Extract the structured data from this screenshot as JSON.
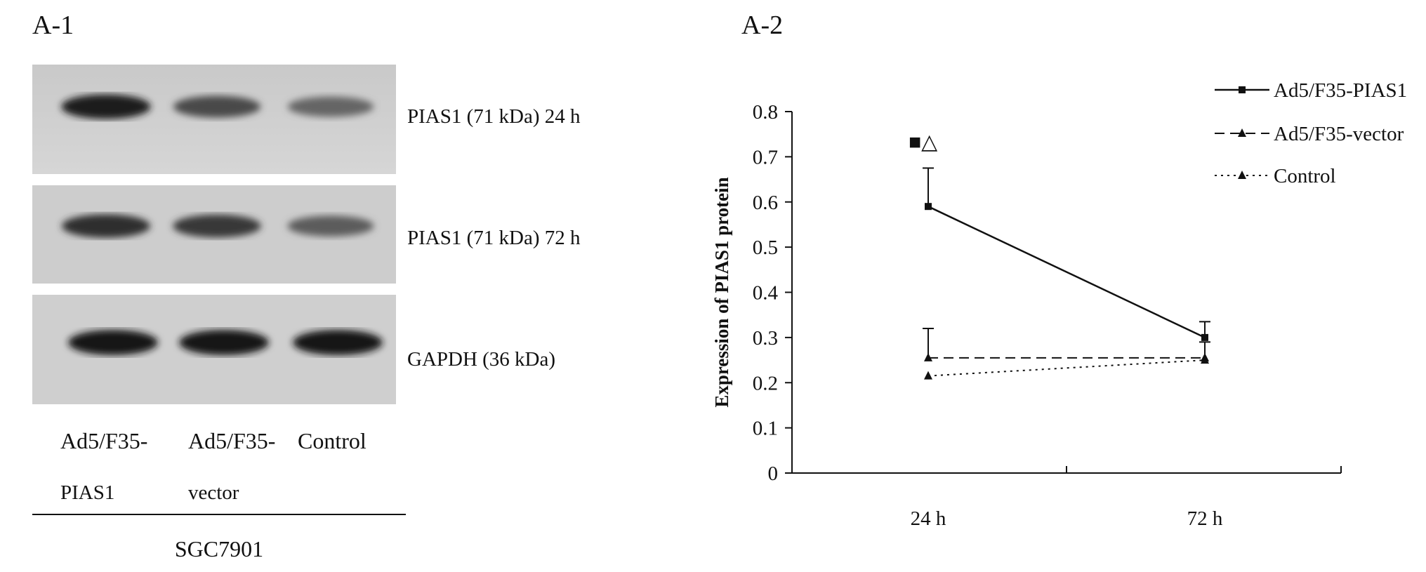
{
  "panels": {
    "a1": "A-1",
    "a2": "A-2"
  },
  "blots": [
    {
      "label": "PIAS1 (71 kDa) 24 h",
      "band_intensity": [
        0.95,
        0.7,
        0.55
      ]
    },
    {
      "label": "PIAS1 (71 kDa) 72 h",
      "band_intensity": [
        0.85,
        0.8,
        0.6
      ]
    },
    {
      "label": "GAPDH (36 kDa)",
      "band_intensity": [
        1.0,
        1.0,
        1.0
      ]
    }
  ],
  "lanes": [
    {
      "line1": "Ad5/F35-",
      "line2": "PIAS1"
    },
    {
      "line1": "Ad5/F35-",
      "line2": "vector"
    },
    {
      "line1": "Control",
      "line2": ""
    }
  ],
  "cell_line": "SGC7901",
  "chart_data": {
    "type": "line",
    "title": "",
    "xlabel": "",
    "ylabel": "Expression of PIAS1 protein",
    "categories": [
      "24 h",
      "72 h"
    ],
    "ylim": [
      0,
      0.8
    ],
    "yticks": [
      "0",
      "0.1",
      "0.2",
      "0.3",
      "0.4",
      "0.5",
      "0.6",
      "0.7",
      "0.8"
    ],
    "grid": false,
    "legend": "top-right",
    "series": [
      {
        "name": "Ad5/F35-PIAS1",
        "values": [
          0.59,
          0.3
        ],
        "error": [
          0.085,
          0.035
        ],
        "dash": "solid",
        "marker": "square"
      },
      {
        "name": "Ad5/F35-vector",
        "values": [
          0.255,
          0.255
        ],
        "error": [
          0.065,
          0.035
        ],
        "dash": "dashed",
        "marker": "triangle"
      },
      {
        "name": "Control",
        "values": [
          0.215,
          0.25
        ],
        "error": [
          0.0,
          0.0
        ],
        "dash": "dotted",
        "marker": "triangle"
      }
    ],
    "annotation": {
      "category": "24 h",
      "text": "■△"
    }
  }
}
